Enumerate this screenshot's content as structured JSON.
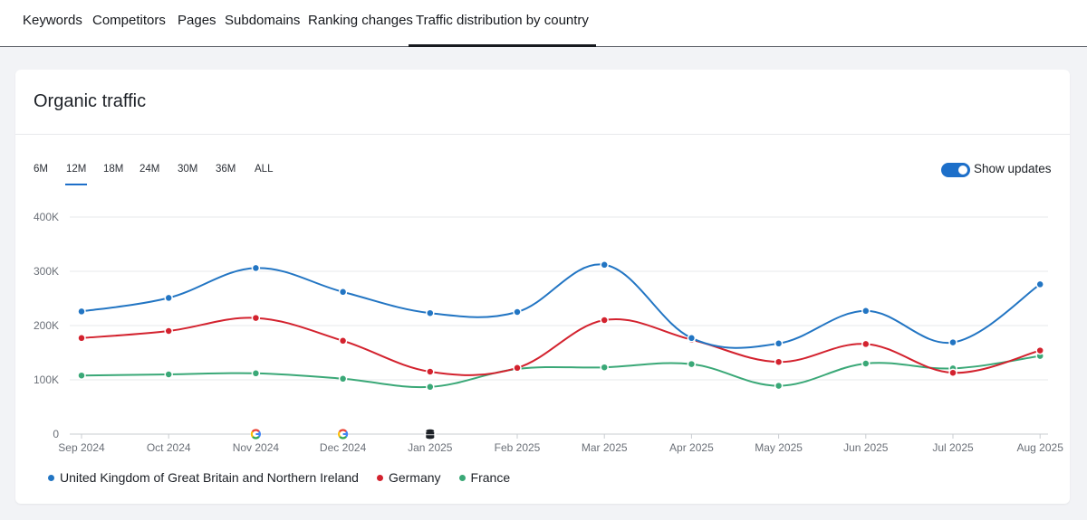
{
  "nav": {
    "tabs": [
      {
        "label": "Keywords"
      },
      {
        "label": "Competitors"
      },
      {
        "label": "Pages"
      },
      {
        "label": "Subdomains"
      },
      {
        "label": "Ranking changes"
      },
      {
        "label": "Traffic distribution by country"
      }
    ],
    "active_tab": "Traffic distribution by country"
  },
  "card": {
    "title": "Organic traffic",
    "ranges": [
      "6M",
      "12M",
      "18M",
      "24M",
      "30M",
      "36M",
      "ALL"
    ],
    "active_range": "12M",
    "show_updates_label": "Show updates",
    "show_updates_on": true
  },
  "colors": {
    "uk": "#2275c3",
    "germany": "#d3222e",
    "france": "#3aa877",
    "accent": "#1d6fc9"
  },
  "chart_data": {
    "type": "line",
    "x": [
      "Sep 2024",
      "Oct 2024",
      "Nov 2024",
      "Dec 2024",
      "Jan 2025",
      "Feb 2025",
      "Mar 2025",
      "Apr 2025",
      "May 2025",
      "Jun 2025",
      "Jul 2025",
      "Aug 2025"
    ],
    "y_ticks": [
      "0",
      "100K",
      "200K",
      "300K",
      "400K"
    ],
    "ylim": [
      0,
      400000
    ],
    "grid": true,
    "legend_position": "bottom-left",
    "series": [
      {
        "name": "United Kingdom of Great Britain and Northern Ireland",
        "color": "#2275c3",
        "values": [
          226000,
          251000,
          306000,
          262000,
          223000,
          225000,
          312000,
          177000,
          167000,
          227000,
          169000,
          276000
        ]
      },
      {
        "name": "Germany",
        "color": "#d3222e",
        "values": [
          177000,
          190000,
          214000,
          172000,
          115000,
          122000,
          210000,
          174000,
          133000,
          166000,
          113000,
          154000
        ]
      },
      {
        "name": "France",
        "color": "#3aa877",
        "values": [
          108000,
          110000,
          112000,
          102000,
          87000,
          120000,
          123000,
          129000,
          89000,
          130000,
          121000,
          144000
        ]
      }
    ],
    "annotations": [
      {
        "x": "Nov 2024",
        "icon": "google-update-icon"
      },
      {
        "x": "Dec 2024",
        "icon": "google-update-icon"
      },
      {
        "x": "Jan 2025",
        "icon": "database-update-icon"
      }
    ]
  }
}
